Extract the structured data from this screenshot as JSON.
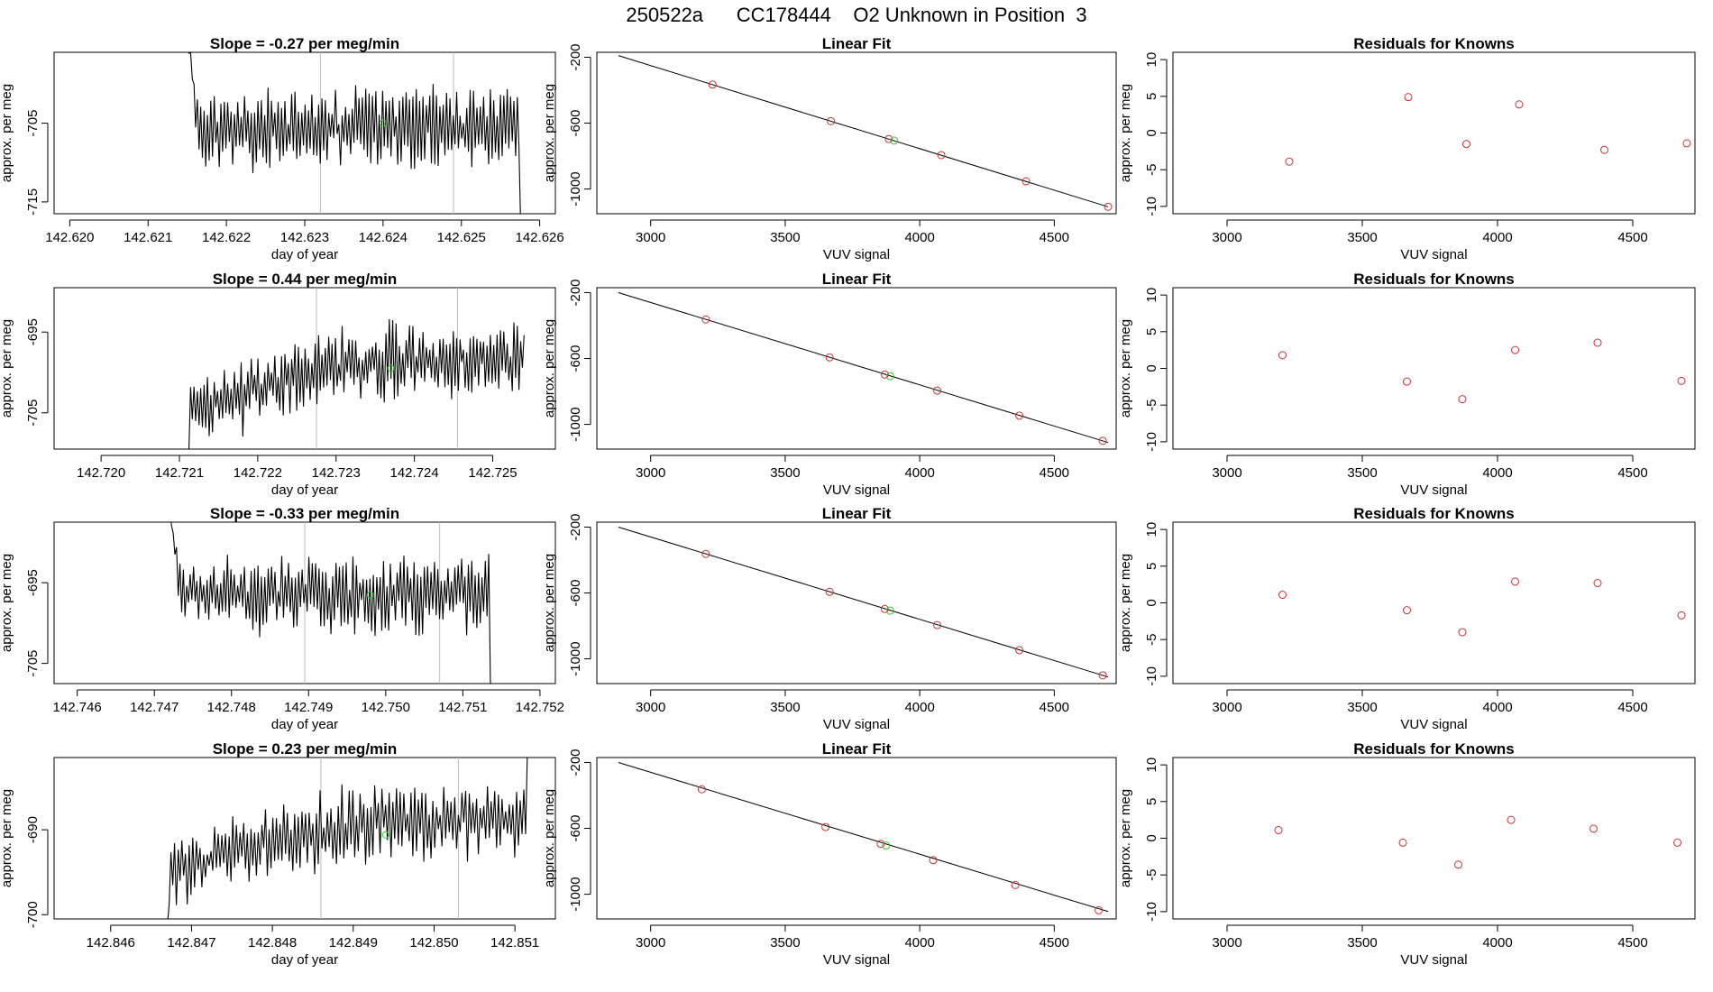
{
  "header": {
    "title": "250522a      CC178444    O2 Unknown in Position  3"
  },
  "colors": {
    "axis": "#000000",
    "series_line": "#000000",
    "known_points": "#cc3333",
    "unknown_point": "#33cc33",
    "cycle_marker": "#bbbbbb"
  },
  "chart_data": [
    {
      "type": "line",
      "panel": "time-series",
      "row": 1,
      "title": "Slope =  -0.27  per meg/min",
      "xlabel": "day of year",
      "ylabel": "approx. per meg",
      "xlim": [
        142.6198,
        142.6262
      ],
      "ylim": [
        -716.5,
        -696
      ],
      "xticks": [
        142.62,
        142.621,
        142.622,
        142.623,
        142.624,
        142.625,
        142.626
      ],
      "xtick_labels": [
        "142.620",
        "142.621",
        "142.622",
        "142.623",
        "142.624",
        "142.625",
        "142.626"
      ],
      "yticks": [
        -705,
        -715
      ],
      "ytick_labels": [
        "-705",
        "-715"
      ],
      "markers": [
        142.6232,
        142.6249
      ],
      "series": {
        "x_start": 142.6215,
        "x_end": 142.6258,
        "n": 200,
        "mean": -705.5,
        "amp": 4.5,
        "seed": 11,
        "entry_value": -694,
        "entry_end": 142.62165,
        "exit_value": -718,
        "exit_start": 142.62575
      },
      "unknown_point": {
        "x": 142.624,
        "y": -705.0
      }
    },
    {
      "type": "scatter",
      "panel": "linear-fit",
      "row": 1,
      "title": "Linear Fit",
      "xlabel": "VUV signal",
      "ylabel": "approx. per meg",
      "xlim": [
        2800,
        4730
      ],
      "ylim": [
        -1150,
        -170
      ],
      "xticks": [
        3000,
        3500,
        4000,
        4500
      ],
      "xtick_labels": [
        "3000",
        "3500",
        "4000",
        "4500"
      ],
      "yticks": [
        -200,
        -600,
        -1000
      ],
      "ytick_labels": [
        "-200",
        "-600",
        "-1000"
      ],
      "fit_line": {
        "x": [
          2880,
          4700
        ],
        "y": [
          -190,
          -1108
        ]
      },
      "known_x": [
        3230,
        3670,
        3885,
        4080,
        4395,
        4700
      ],
      "known_y": [
        -366,
        -588,
        -696,
        -794,
        -953,
        -1108
      ],
      "unknown_x": 3905,
      "unknown_y": -706
    },
    {
      "type": "scatter",
      "panel": "residuals",
      "row": 1,
      "title": "Residuals for Knowns",
      "xlabel": "VUV signal",
      "ylabel": "approx. per meg",
      "xlim": [
        2800,
        4730
      ],
      "ylim": [
        -11,
        11
      ],
      "xticks": [
        3000,
        3500,
        4000,
        4500
      ],
      "xtick_labels": [
        "3000",
        "3500",
        "4000",
        "4500"
      ],
      "yticks": [
        10,
        5,
        0,
        -5,
        -10
      ],
      "ytick_labels": [
        "10",
        "5",
        "0",
        "-5",
        "-10"
      ],
      "known_x": [
        3230,
        3670,
        3885,
        4080,
        4395,
        4700
      ],
      "residuals": [
        -3.9,
        4.9,
        -1.5,
        3.9,
        -2.3,
        -1.4
      ]
    },
    {
      "type": "line",
      "panel": "time-series",
      "row": 2,
      "title": "Slope =  0.44  per meg/min",
      "xlabel": "day of year",
      "ylabel": "approx. per meg",
      "xlim": [
        142.7194,
        142.7258
      ],
      "ylim": [
        -709.5,
        -689.5
      ],
      "xticks": [
        142.72,
        142.721,
        142.722,
        142.723,
        142.724,
        142.725
      ],
      "xtick_labels": [
        "142.720",
        "142.721",
        "142.722",
        "142.723",
        "142.724",
        "142.725"
      ],
      "yticks": [
        -695,
        -705
      ],
      "ytick_labels": [
        "-695",
        "-705"
      ],
      "markers": [
        142.72275,
        142.72455
      ],
      "series": {
        "x_start": 142.7211,
        "x_end": 142.7254,
        "n": 200,
        "mean": -699.5,
        "amp": 4.0,
        "seed": 23,
        "entry_value": -711,
        "entry_end": 142.72115,
        "exit_value": -687,
        "exit_start": 142.7254,
        "trend": [
          -704.5,
          -698.5
        ]
      },
      "unknown_point": {
        "x": 142.7237,
        "y": -699.5
      }
    },
    {
      "type": "scatter",
      "panel": "linear-fit",
      "row": 2,
      "title": "Linear Fit",
      "xlabel": "VUV signal",
      "ylabel": "approx. per meg",
      "xlim": [
        2800,
        4730
      ],
      "ylim": [
        -1150,
        -170
      ],
      "xticks": [
        3000,
        3500,
        4000,
        4500
      ],
      "xtick_labels": [
        "3000",
        "3500",
        "4000",
        "4500"
      ],
      "yticks": [
        -200,
        -600,
        -1000
      ],
      "ytick_labels": [
        "-200",
        "-600",
        "-1000"
      ],
      "fit_line": {
        "x": [
          2880,
          4700
        ],
        "y": [
          -200,
          -1110
        ]
      },
      "known_x": [
        3205,
        3665,
        3870,
        4065,
        4370,
        4680
      ],
      "known_y": [
        -363,
        -593,
        -697,
        -795,
        -947,
        -1100
      ],
      "unknown_x": 3890,
      "unknown_y": -707
    },
    {
      "type": "scatter",
      "panel": "residuals",
      "row": 2,
      "title": "Residuals for Knowns",
      "xlabel": "VUV signal",
      "ylabel": "approx. per meg",
      "xlim": [
        2800,
        4730
      ],
      "ylim": [
        -11,
        11
      ],
      "xticks": [
        3000,
        3500,
        4000,
        4500
      ],
      "xtick_labels": [
        "3000",
        "3500",
        "4000",
        "4500"
      ],
      "yticks": [
        10,
        5,
        0,
        -5,
        -10
      ],
      "ytick_labels": [
        "10",
        "5",
        "0",
        "-5",
        "-10"
      ],
      "known_x": [
        3205,
        3665,
        3870,
        4065,
        4370,
        4680
      ],
      "residuals": [
        1.8,
        -1.8,
        -4.2,
        2.5,
        3.5,
        -1.7
      ]
    },
    {
      "type": "line",
      "panel": "time-series",
      "row": 3,
      "title": "Slope =  -0.33  per meg/min",
      "xlabel": "day of year",
      "ylabel": "approx. per meg",
      "xlim": [
        142.7457,
        142.7522
      ],
      "ylim": [
        -707.5,
        -687.5
      ],
      "xticks": [
        142.746,
        142.747,
        142.748,
        142.749,
        142.75,
        142.751,
        142.752
      ],
      "xtick_labels": [
        "142.746",
        "142.747",
        "142.748",
        "142.749",
        "142.750",
        "142.751",
        "142.752"
      ],
      "yticks": [
        -695,
        -705
      ],
      "ytick_labels": [
        "-695",
        "-705"
      ],
      "markers": [
        142.74895,
        142.7507
      ],
      "series": {
        "x_start": 142.7472,
        "x_end": 142.7516,
        "n": 200,
        "mean": -696.5,
        "amp": 4.2,
        "seed": 37,
        "entry_value": -686,
        "entry_end": 142.74735,
        "exit_value": -708,
        "exit_start": 142.75135
      },
      "unknown_point": {
        "x": 142.7498,
        "y": -696.5
      }
    },
    {
      "type": "scatter",
      "panel": "linear-fit",
      "row": 3,
      "title": "Linear Fit",
      "xlabel": "VUV signal",
      "ylabel": "approx. per meg",
      "xlim": [
        2800,
        4730
      ],
      "ylim": [
        -1150,
        -170
      ],
      "xticks": [
        3000,
        3500,
        4000,
        4500
      ],
      "xtick_labels": [
        "3000",
        "3500",
        "4000",
        "4500"
      ],
      "yticks": [
        -200,
        -600,
        -1000
      ],
      "ytick_labels": [
        "-200",
        "-600",
        "-1000"
      ],
      "fit_line": {
        "x": [
          2880,
          4700
        ],
        "y": [
          -200,
          -1110
        ]
      },
      "known_x": [
        3205,
        3665,
        3870,
        4065,
        4370,
        4680
      ],
      "known_y": [
        -363,
        -593,
        -697,
        -795,
        -947,
        -1100
      ],
      "unknown_x": 3890,
      "unknown_y": -707
    },
    {
      "type": "scatter",
      "panel": "residuals",
      "row": 3,
      "title": "Residuals for Knowns",
      "xlabel": "VUV signal",
      "ylabel": "approx. per meg",
      "xlim": [
        2800,
        4730
      ],
      "ylim": [
        -11,
        11
      ],
      "xticks": [
        3000,
        3500,
        4000,
        4500
      ],
      "xtick_labels": [
        "3000",
        "3500",
        "4000",
        "4500"
      ],
      "yticks": [
        10,
        5,
        0,
        -5,
        -10
      ],
      "ytick_labels": [
        "10",
        "5",
        "0",
        "-5",
        "-10"
      ],
      "known_x": [
        3205,
        3665,
        3870,
        4065,
        4370,
        4680
      ],
      "residuals": [
        1.1,
        -1.0,
        -4.0,
        2.9,
        2.7,
        -1.7
      ]
    },
    {
      "type": "line",
      "panel": "time-series",
      "row": 4,
      "title": "Slope =  0.23  per meg/min",
      "xlabel": "day of year",
      "ylabel": "approx. per meg",
      "xlim": [
        142.8453,
        142.8515
      ],
      "ylim": [
        -700.5,
        -681.5
      ],
      "xticks": [
        142.846,
        142.847,
        142.848,
        142.849,
        142.85,
        142.851
      ],
      "xtick_labels": [
        "142.846",
        "142.847",
        "142.848",
        "142.849",
        "142.850",
        "142.851"
      ],
      "yticks": [
        -690,
        -700
      ],
      "ytick_labels": [
        "-690",
        "-700"
      ],
      "markers": [
        142.8486,
        142.8503
      ],
      "series": {
        "x_start": 142.8467,
        "x_end": 142.8512,
        "n": 200,
        "mean": -690.5,
        "amp": 3.8,
        "seed": 53,
        "entry_value": -701.5,
        "entry_end": 142.84675,
        "exit_value": -680,
        "exit_start": 142.85115,
        "trend": [
          -694.5,
          -689
        ]
      },
      "unknown_point": {
        "x": 142.8494,
        "y": -690.6
      }
    },
    {
      "type": "scatter",
      "panel": "linear-fit",
      "row": 4,
      "title": "Linear Fit",
      "xlabel": "VUV signal",
      "ylabel": "approx. per meg",
      "xlim": [
        2800,
        4730
      ],
      "ylim": [
        -1150,
        -170
      ],
      "xticks": [
        3000,
        3500,
        4000,
        4500
      ],
      "xtick_labels": [
        "3000",
        "3500",
        "4000",
        "4500"
      ],
      "yticks": [
        -200,
        -600,
        -1000
      ],
      "ytick_labels": [
        "-200",
        "-600",
        "-1000"
      ],
      "fit_line": {
        "x": [
          2880,
          4700
        ],
        "y": [
          -200,
          -1105
        ]
      },
      "known_x": [
        3190,
        3650,
        3855,
        4050,
        4355,
        4665
      ],
      "known_y": [
        -363,
        -592,
        -694,
        -793,
        -944,
        -1097
      ],
      "unknown_x": 3875,
      "unknown_y": -704
    },
    {
      "type": "scatter",
      "panel": "residuals",
      "row": 4,
      "title": "Residuals for Knowns",
      "xlabel": "VUV signal",
      "ylabel": "approx. per meg",
      "xlim": [
        2800,
        4730
      ],
      "ylim": [
        -11,
        11
      ],
      "xticks": [
        3000,
        3500,
        4000,
        4500
      ],
      "xtick_labels": [
        "3000",
        "3500",
        "4000",
        "4500"
      ],
      "yticks": [
        10,
        5,
        0,
        -5,
        -10
      ],
      "ytick_labels": [
        "10",
        "5",
        "0",
        "-5",
        "-10"
      ],
      "known_x": [
        3190,
        3650,
        3855,
        4050,
        4355,
        4665
      ],
      "residuals": [
        1.1,
        -0.6,
        -3.6,
        2.5,
        1.3,
        -0.6
      ]
    }
  ]
}
